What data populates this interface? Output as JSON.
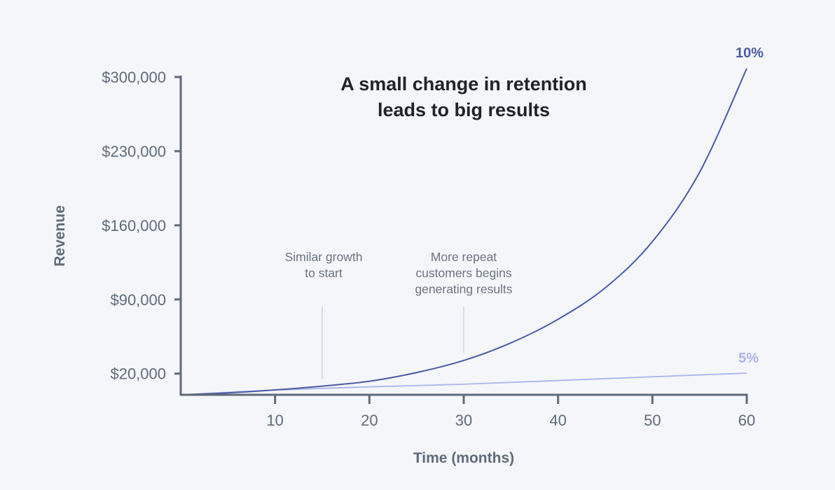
{
  "chart_data": {
    "type": "line",
    "title": [
      "A small change in retention",
      "leads to big results"
    ],
    "xlabel": "Time (months)",
    "ylabel": "Revenue",
    "xlim": [
      0,
      60
    ],
    "ylim": [
      0,
      300000
    ],
    "x_ticks": [
      10,
      20,
      30,
      40,
      50,
      60
    ],
    "x_tick_labels": [
      "10",
      "20",
      "30",
      "40",
      "50",
      "60"
    ],
    "y_ticks": [
      20000,
      90000,
      160000,
      230000,
      300000
    ],
    "y_tick_labels": [
      "$20,000",
      "$90,000",
      "$160,000",
      "$230,000",
      "$300,000"
    ],
    "grid": false,
    "series": [
      {
        "name": "10%",
        "color": "#4a5ba3",
        "x": [
          0,
          5,
          10,
          15,
          20,
          25,
          30,
          35,
          40,
          45,
          50,
          55,
          60
        ],
        "values": [
          0,
          1800,
          4600,
          8200,
          12800,
          21000,
          32400,
          49000,
          71300,
          101000,
          144600,
          210000,
          308000
        ]
      },
      {
        "name": "5%",
        "color": "#aab4ea",
        "x": [
          0,
          10,
          20,
          30,
          40,
          50,
          60
        ],
        "values": [
          0,
          4500,
          7500,
          10000,
          13500,
          17000,
          20500
        ]
      }
    ],
    "annotations": [
      {
        "text": [
          "Similar growth",
          "to start"
        ],
        "x": 15
      },
      {
        "text": [
          "More repeat",
          "customers begins",
          "generating results"
        ],
        "x": 30
      }
    ]
  },
  "colors": {
    "background": "#f4f6f9",
    "axis": "#5f6b7a",
    "title": "#1f2328",
    "annotation_line": "#c9ced6"
  }
}
